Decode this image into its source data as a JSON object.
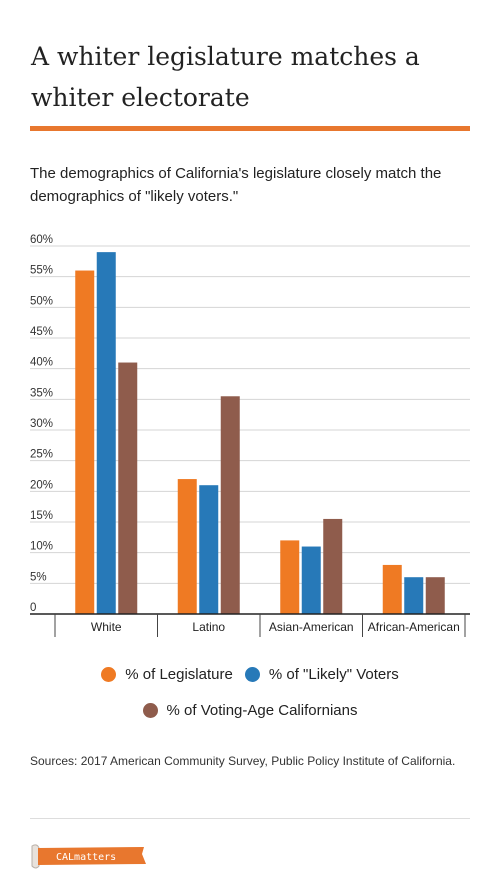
{
  "header": {
    "title_line1": "A whiter legislature matches a",
    "title_line2": "whiter electorate",
    "subtitle": "The demographics of California's legislature closely match the demographics of \"likely voters.\""
  },
  "colors": {
    "accent": "#e8772e",
    "legislature": "#ef7a23",
    "likely_voters": "#2779b8",
    "voting_age": "#8f5c4c"
  },
  "chart_data": {
    "type": "bar",
    "categories": [
      "White",
      "Latino",
      "Asian-American",
      "African-American"
    ],
    "series": [
      {
        "name": "% of Legislature",
        "values": [
          56,
          22,
          12,
          8
        ]
      },
      {
        "name": "% of \"Likely\" Voters",
        "values": [
          59,
          21,
          11,
          6
        ]
      },
      {
        "name": "% of Voting-Age Californians",
        "values": [
          41,
          35.5,
          15.5,
          6
        ]
      }
    ],
    "ylim": [
      0,
      60
    ],
    "yticks": [
      "0",
      "5%",
      "10%",
      "15%",
      "20%",
      "25%",
      "30%",
      "35%",
      "40%",
      "45%",
      "50%",
      "55%",
      "60%"
    ],
    "grid": true,
    "legend_position": "bottom"
  },
  "footer": {
    "sources": "Sources: 2017 American Community Survey, Public Policy Institute of California.",
    "logo_text": "CALmatters"
  }
}
